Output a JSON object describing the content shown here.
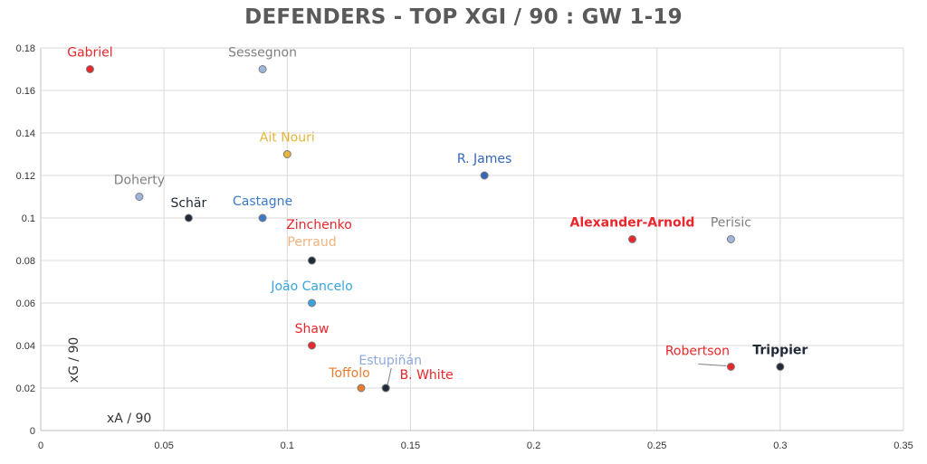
{
  "chart_data": {
    "type": "scatter",
    "title": "DEFENDERS - TOP XGI / 90 : GW 1-19",
    "xlabel": "xA / 90",
    "ylabel": "xG / 90",
    "xlim": [
      0,
      0.35
    ],
    "ylim": [
      0,
      0.18
    ],
    "x_ticks": [
      "0",
      "0.05",
      "0.1",
      "0.15",
      "0.2",
      "0.25",
      "0.3",
      "0.35"
    ],
    "y_ticks": [
      "0",
      "0.02",
      "0.04",
      "0.06",
      "0.08",
      "0.1",
      "0.12",
      "0.14",
      "0.16",
      "0.18"
    ],
    "grid": true,
    "legend": "none",
    "points": [
      {
        "label": "Gabriel",
        "x": 0.02,
        "y": 0.17,
        "color": "#e8262b",
        "fill": "#e8262b",
        "bold": false
      },
      {
        "label": "Sessegnon",
        "x": 0.09,
        "y": 0.17,
        "color": "#7f7f7f",
        "fill": "#9fb7df",
        "bold": false
      },
      {
        "label": "Ait Nouri",
        "x": 0.1,
        "y": 0.13,
        "color": "#e8b53a",
        "fill": "#e8b53a",
        "bold": false
      },
      {
        "label": "R. James",
        "x": 0.18,
        "y": 0.12,
        "color": "#3566b8",
        "fill": "#3566b8",
        "bold": false
      },
      {
        "label": "Doherty",
        "x": 0.04,
        "y": 0.11,
        "color": "#7f7f7f",
        "fill": "#9fb7df",
        "bold": false
      },
      {
        "label": "Schär",
        "x": 0.06,
        "y": 0.1,
        "color": "#222a38",
        "fill": "#222a38",
        "bold": false
      },
      {
        "label": "Castagne",
        "x": 0.09,
        "y": 0.1,
        "color": "#3d7bc8",
        "fill": "#3d7bc8",
        "bold": false
      },
      {
        "label": "Zinchenko",
        "x": 0.11,
        "y": 0.08,
        "color": "#e8262b",
        "fill": "#222a38",
        "bold": false
      },
      {
        "label": "Perraud",
        "x": 0.11,
        "y": 0.08,
        "color": "#f0b37e",
        "fill": "#222a38",
        "bold": false
      },
      {
        "label": "João Cancelo",
        "x": 0.11,
        "y": 0.06,
        "color": "#38a3dd",
        "fill": "#38a3dd",
        "bold": false
      },
      {
        "label": "Shaw",
        "x": 0.11,
        "y": 0.04,
        "color": "#e8262b",
        "fill": "#e8262b",
        "bold": false
      },
      {
        "label": "Toffolo",
        "x": 0.13,
        "y": 0.02,
        "color": "#e87d2e",
        "fill": "#e87d2e",
        "bold": false
      },
      {
        "label": "Estupiñán",
        "x": 0.14,
        "y": 0.02,
        "color": "#8eaadb",
        "fill": "#222a38",
        "bold": false
      },
      {
        "label": "B. White",
        "x": 0.14,
        "y": 0.02,
        "color": "#e8262b",
        "fill": "#222a38",
        "bold": false
      },
      {
        "label": "Alexander-Arnold",
        "x": 0.24,
        "y": 0.09,
        "color": "#e8262b",
        "fill": "#e8262b",
        "bold": true
      },
      {
        "label": "Perisic",
        "x": 0.28,
        "y": 0.09,
        "color": "#7f7f7f",
        "fill": "#9fb7df",
        "bold": false
      },
      {
        "label": "Robertson",
        "x": 0.28,
        "y": 0.03,
        "color": "#e8262b",
        "fill": "#e8262b",
        "bold": false
      },
      {
        "label": "Trippier",
        "x": 0.3,
        "y": 0.03,
        "color": "#222a38",
        "fill": "#222a38",
        "bold": true
      }
    ]
  }
}
